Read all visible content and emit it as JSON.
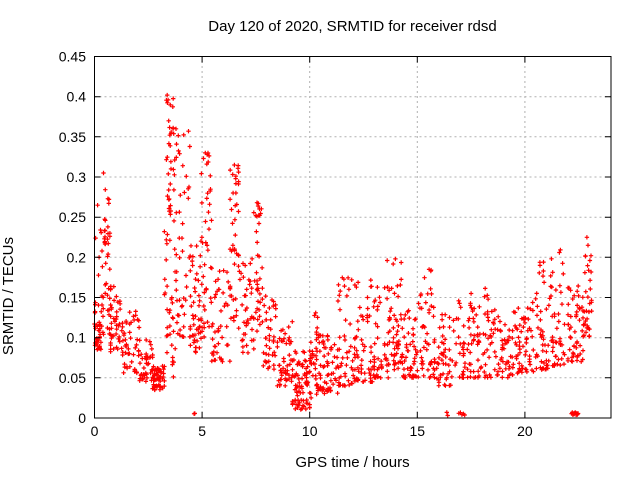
{
  "colors": {
    "marker": "#ff0000",
    "grid": "#b0b0b0",
    "axis": "#000000",
    "text": "#000000",
    "background": "#ffffff"
  },
  "chart_data": {
    "type": "scatter",
    "title": "Day 120 of 2020, SRMTID for receiver rdsd",
    "xlabel": "GPS time / hours",
    "ylabel": "SRMTID / TECUs",
    "xlim": [
      0,
      24
    ],
    "ylim": [
      0,
      0.45
    ],
    "xticks": [
      0,
      5,
      10,
      15,
      20
    ],
    "xtick_labels": [
      "0",
      "5",
      "10",
      "15",
      "20"
    ],
    "yticks": [
      0,
      0.05,
      0.1,
      0.15,
      0.2,
      0.25,
      0.3,
      0.35,
      0.4,
      0.45
    ],
    "ytick_labels": [
      "0",
      "0.05",
      "0.1",
      "0.15",
      "0.2",
      "0.25",
      "0.3",
      "0.35",
      "0.4",
      "0.45"
    ],
    "grid": true,
    "legend": "none",
    "marker": "plus",
    "series_name": "SRMTID",
    "seed": 1202020,
    "density_bins": [
      [
        0.0,
        0.35,
        40,
        0.085,
        0.145,
        1.2,
        3
      ],
      [
        0.05,
        0.5,
        7,
        0.15,
        0.305,
        1.0,
        2
      ],
      [
        0.35,
        0.75,
        30,
        0.15,
        0.275,
        1.0,
        3
      ],
      [
        0.35,
        0.8,
        15,
        0.1,
        0.155,
        1.0,
        2
      ],
      [
        0.75,
        1.3,
        40,
        0.08,
        0.165,
        1.3,
        4
      ],
      [
        1.3,
        2.1,
        50,
        0.055,
        0.135,
        1.4,
        5
      ],
      [
        2.1,
        2.7,
        40,
        0.045,
        0.1,
        1.3,
        4
      ],
      [
        2.7,
        3.25,
        55,
        0.035,
        0.065,
        1.2,
        5
      ],
      [
        3.25,
        3.8,
        70,
        0.05,
        0.4,
        0.9,
        4
      ],
      [
        3.8,
        4.45,
        45,
        0.1,
        0.355,
        1.3,
        4
      ],
      [
        4.45,
        4.95,
        45,
        0.08,
        0.22,
        1.4,
        4
      ],
      [
        4.95,
        5.45,
        45,
        0.1,
        0.33,
        1.1,
        3
      ],
      [
        5.45,
        6.3,
        45,
        0.07,
        0.185,
        1.4,
        5
      ],
      [
        6.3,
        6.7,
        40,
        0.12,
        0.315,
        1.1,
        3
      ],
      [
        6.7,
        7.4,
        40,
        0.08,
        0.2,
        1.5,
        4
      ],
      [
        7.4,
        7.8,
        35,
        0.1,
        0.27,
        1.2,
        3
      ],
      [
        7.8,
        8.5,
        42,
        0.06,
        0.16,
        1.4,
        4
      ],
      [
        8.5,
        9.2,
        48,
        0.04,
        0.12,
        1.4,
        4
      ],
      [
        9.2,
        10.0,
        80,
        0.01,
        0.085,
        1.3,
        5
      ],
      [
        10.0,
        10.5,
        45,
        0.025,
        0.135,
        1.5,
        3
      ],
      [
        10.5,
        11.3,
        50,
        0.03,
        0.105,
        1.4,
        5
      ],
      [
        11.3,
        12.1,
        52,
        0.04,
        0.175,
        1.7,
        5
      ],
      [
        12.1,
        13.0,
        58,
        0.045,
        0.175,
        1.8,
        6
      ],
      [
        13.0,
        13.8,
        55,
        0.05,
        0.165,
        1.7,
        5
      ],
      [
        13.8,
        14.25,
        40,
        0.06,
        0.2,
        1.5,
        3
      ],
      [
        14.25,
        14.95,
        48,
        0.05,
        0.155,
        1.6,
        5
      ],
      [
        14.95,
        15.8,
        52,
        0.05,
        0.19,
        1.8,
        5
      ],
      [
        15.8,
        16.8,
        52,
        0.04,
        0.135,
        1.5,
        6
      ],
      [
        16.8,
        17.8,
        52,
        0.05,
        0.155,
        1.6,
        6
      ],
      [
        17.8,
        18.6,
        50,
        0.05,
        0.165,
        1.7,
        5
      ],
      [
        18.6,
        19.6,
        52,
        0.05,
        0.135,
        1.5,
        6
      ],
      [
        19.6,
        20.5,
        52,
        0.055,
        0.145,
        1.5,
        6
      ],
      [
        20.5,
        21.2,
        46,
        0.06,
        0.195,
        1.7,
        4
      ],
      [
        21.2,
        22.0,
        46,
        0.065,
        0.21,
        1.7,
        5
      ],
      [
        22.0,
        22.7,
        50,
        0.07,
        0.165,
        1.5,
        5
      ],
      [
        22.7,
        23.1,
        36,
        0.1,
        0.225,
        1.1,
        3
      ]
    ],
    "zero_points_x": [
      4.63,
      4.66,
      16.37,
      16.41,
      16.93,
      17.0,
      17.07,
      17.14,
      17.2,
      22.17,
      22.2,
      22.23,
      22.26,
      22.29,
      22.32,
      22.35,
      22.38,
      22.41,
      22.44,
      22.47
    ],
    "notable_points": [
      [
        0.42,
        0.305
      ],
      [
        3.38,
        0.402
      ],
      [
        3.42,
        0.396
      ],
      [
        3.45,
        0.37
      ],
      [
        3.5,
        0.352
      ],
      [
        4.37,
        0.357
      ],
      [
        4.43,
        0.338
      ],
      [
        5.15,
        0.33
      ],
      [
        5.22,
        0.316
      ],
      [
        6.5,
        0.315
      ],
      [
        6.56,
        0.298
      ],
      [
        7.55,
        0.268
      ],
      [
        7.63,
        0.252
      ],
      [
        10.28,
        0.131
      ],
      [
        11.95,
        0.172
      ],
      [
        13.6,
        0.196
      ],
      [
        13.98,
        0.198
      ],
      [
        15.55,
        0.185
      ],
      [
        17.5,
        0.155
      ],
      [
        20.7,
        0.19
      ],
      [
        21.6,
        0.206
      ],
      [
        22.88,
        0.225
      ],
      [
        22.93,
        0.215
      ]
    ]
  }
}
